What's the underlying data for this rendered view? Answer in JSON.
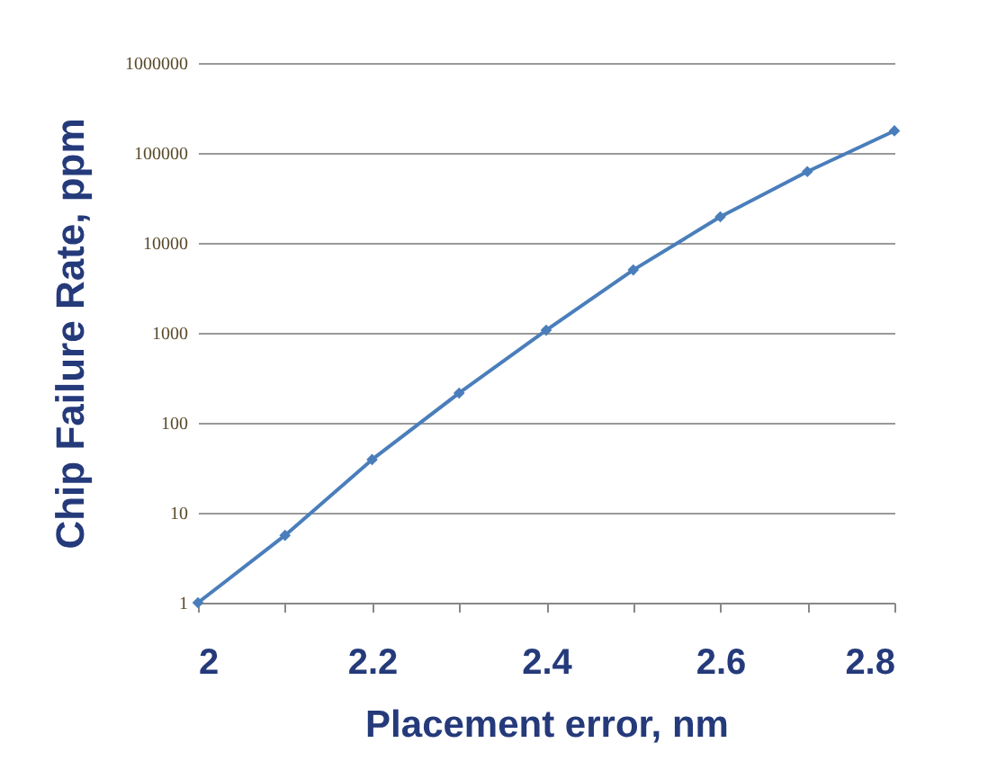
{
  "chart_data": {
    "type": "line",
    "xlabel": "Placement error, nm",
    "ylabel": "Chip Failure Rate, ppm",
    "x": [
      2.0,
      2.1,
      2.2,
      2.3,
      2.4,
      2.5,
      2.6,
      2.7,
      2.8
    ],
    "series": [
      {
        "color": "#4a7ebb",
        "values": [
          1,
          5.6,
          39,
          214,
          1070,
          5000,
          19500,
          62000,
          176000
        ]
      }
    ],
    "xlim": [
      2,
      2.8
    ],
    "xticks": [
      2,
      {
        "value": 2.1,
        "label": null
      },
      2.2,
      {
        "value": 2.3,
        "label": null
      },
      2.4,
      {
        "value": 2.5,
        "label": null
      },
      2.6,
      {
        "value": 2.7,
        "label": null
      },
      2.8
    ],
    "ylim": [
      1,
      1000000
    ],
    "yticks": [
      1,
      10,
      100,
      1000,
      10000,
      100000,
      1000000
    ],
    "log": true,
    "grid": "y",
    "marker": "diamond",
    "line_style": "solid"
  }
}
